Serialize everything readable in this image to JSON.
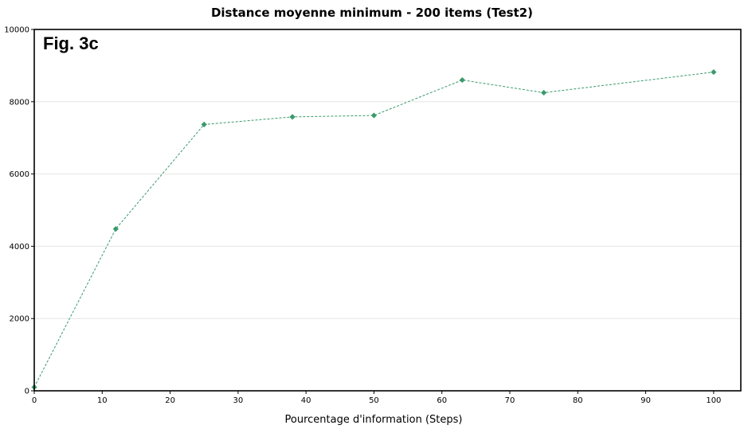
{
  "chart_data": {
    "type": "line",
    "title": "Distance moyenne minimum - 200 items (Test2)",
    "annotation": "Fig. 3c",
    "xlabel": "Pourcentage d'information (Steps)",
    "ylabel": "",
    "xlim": [
      0,
      104
    ],
    "ylim": [
      0,
      10000
    ],
    "xticks": [
      0,
      10,
      20,
      30,
      40,
      50,
      60,
      70,
      80,
      90,
      100
    ],
    "yticks": [
      0,
      2000,
      4000,
      6000,
      8000,
      10000
    ],
    "grid": true,
    "series": [
      {
        "x": [
          0,
          12,
          25,
          38,
          50,
          63,
          75,
          100
        ],
        "y": [
          100,
          4480,
          7370,
          7580,
          7620,
          8600,
          8250,
          8820
        ]
      }
    ],
    "colors": {
      "series": "#3a9a6c",
      "grid": "#e6e6e6",
      "frame": "#000000"
    }
  }
}
